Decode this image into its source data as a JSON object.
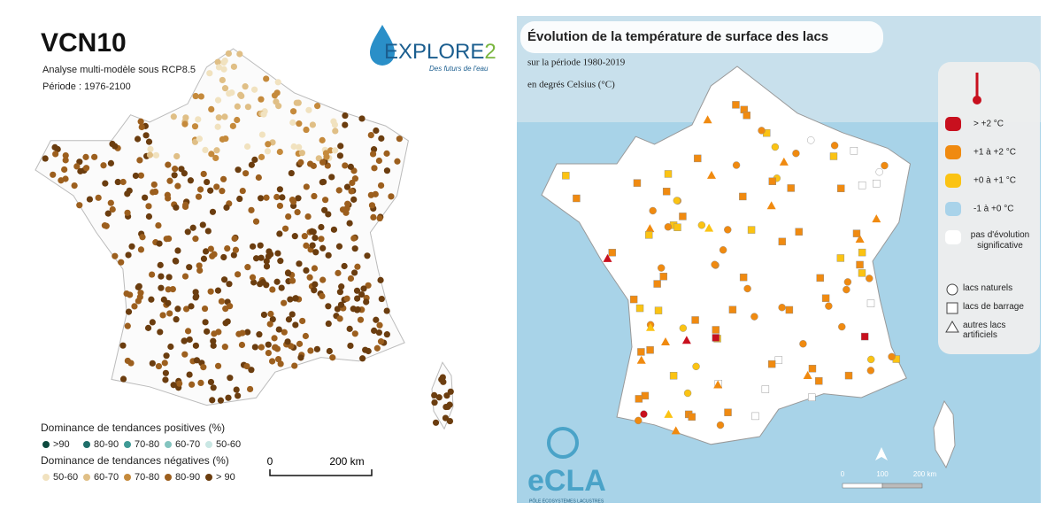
{
  "left_map": {
    "title": "VCN10",
    "subtitle": "Analyse multi-modèle sous RCP8.5",
    "period": "Période : 1976-2100",
    "logo": {
      "name": "EXPLORE",
      "number": "2",
      "tagline": "Des futurs de l'eau"
    },
    "legend": {
      "positive_title": "Dominance de tendances positives (%)",
      "positive": [
        {
          "label": ">90",
          "color": "#0d4a3e"
        },
        {
          "label": "80-90",
          "color": "#1f6f6a"
        },
        {
          "label": "70-80",
          "color": "#3f9a95"
        },
        {
          "label": "60-70",
          "color": "#83c4bf"
        },
        {
          "label": "50-60",
          "color": "#c9e7e4"
        }
      ],
      "negative_title": "Dominance de tendances négatives (%)",
      "negative": [
        {
          "label": "50-60",
          "color": "#f1e2bf"
        },
        {
          "label": "60-70",
          "color": "#e0bf86"
        },
        {
          "label": "70-80",
          "color": "#c58a3c"
        },
        {
          "label": "80-90",
          "color": "#9c5f1e"
        },
        {
          "label": "> 90",
          "color": "#6b3d0f"
        }
      ]
    },
    "scale": [
      "0",
      "200 km"
    ]
  },
  "right_map": {
    "title": "Évolution de la température de surface des lacs",
    "period": "sur la période 1980-2019",
    "unit": "en degrés Celsius (°C)",
    "legend": {
      "classes": [
        {
          "label": "> +2 °C",
          "color": "#c8101e"
        },
        {
          "label": "+1 à +2 °C",
          "color": "#f08a10"
        },
        {
          "label": "+0 à +1 °C",
          "color": "#fbc313"
        },
        {
          "label": "-1 à +0 °C",
          "color": "#a9d3ea"
        },
        {
          "label": "pas d'évolution significative",
          "color": "#ffffff"
        }
      ],
      "shapes": [
        {
          "label": "lacs naturels",
          "shape": "circle"
        },
        {
          "label": "lacs de barrage",
          "shape": "square"
        },
        {
          "label": "autres lacs artificiels",
          "shape": "triangle"
        }
      ]
    },
    "scale": [
      "0",
      "100",
      "200 km"
    ],
    "logo": {
      "name": "eCLA",
      "tagline": "PÔLE ÉCOSYSTÈMES LACUSTRES"
    }
  }
}
